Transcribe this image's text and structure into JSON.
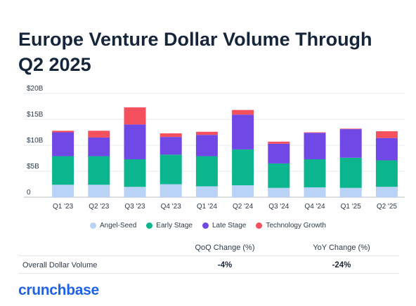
{
  "title": "Europe Venture Dollar Volume Through Q2 2025",
  "chart_data": {
    "type": "bar",
    "stacked": true,
    "categories": [
      "Q1 '23",
      "Q2 '23",
      "Q3 '23",
      "Q4 '23",
      "Q1 '24",
      "Q2 '24",
      "Q3 '24",
      "Q4 '24",
      "Q1 '25",
      "Q2 '25"
    ],
    "y_ticks": [
      "$20B",
      "$15B",
      "$10B",
      "$5B",
      "0"
    ],
    "ylim": [
      0,
      20
    ],
    "legend_position": "bottom",
    "series": [
      {
        "name": "Angel-Seed",
        "color": "#b8d3f5",
        "values": [
          2.4,
          2.4,
          2.0,
          2.5,
          2.1,
          2.3,
          1.8,
          1.9,
          1.8,
          2.0
        ]
      },
      {
        "name": "Early Stage",
        "color": "#0bb58e",
        "values": [
          5.5,
          5.5,
          5.3,
          5.7,
          5.8,
          6.9,
          4.7,
          5.4,
          5.8,
          5.1
        ]
      },
      {
        "name": "Late Stage",
        "color": "#6f48e6",
        "values": [
          4.6,
          3.6,
          6.7,
          3.4,
          4.1,
          6.7,
          3.8,
          5.1,
          5.5,
          4.3
        ]
      },
      {
        "name": "Technology Growth",
        "color": "#f4505e",
        "values": [
          0.3,
          1.3,
          3.3,
          0.7,
          0.6,
          0.9,
          0.4,
          0.1,
          0.1,
          1.3
        ]
      }
    ]
  },
  "summary": {
    "headers": [
      "",
      "QoQ Change (%)",
      "YoY Change (%)"
    ],
    "row": {
      "label": "Overall Dollar Volume",
      "qoq": "-4%",
      "yoy": "-24%"
    }
  },
  "brand": "crunchbase"
}
